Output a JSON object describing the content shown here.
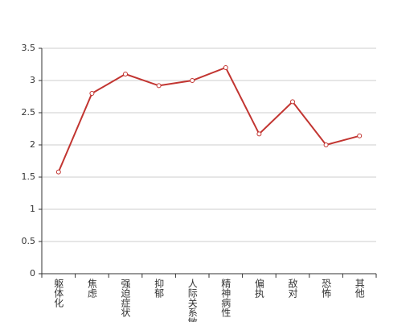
{
  "chart_data": {
    "type": "line",
    "categories": [
      "躯体化",
      "焦虑",
      "强迫症状",
      "抑郁",
      "人际关系敏感",
      "精神病性",
      "偏执",
      "敌对",
      "恐怖",
      "其他"
    ],
    "series": [
      {
        "color": "#c23531",
        "values": [
          1.58,
          2.8,
          3.1,
          2.92,
          3.0,
          3.2,
          2.17,
          2.67,
          2.0,
          2.14
        ]
      }
    ],
    "ylim": [
      0,
      3.5
    ],
    "yticks": [
      0,
      0.5,
      1,
      1.5,
      2,
      2.5,
      3,
      3.5
    ],
    "grid": true
  }
}
